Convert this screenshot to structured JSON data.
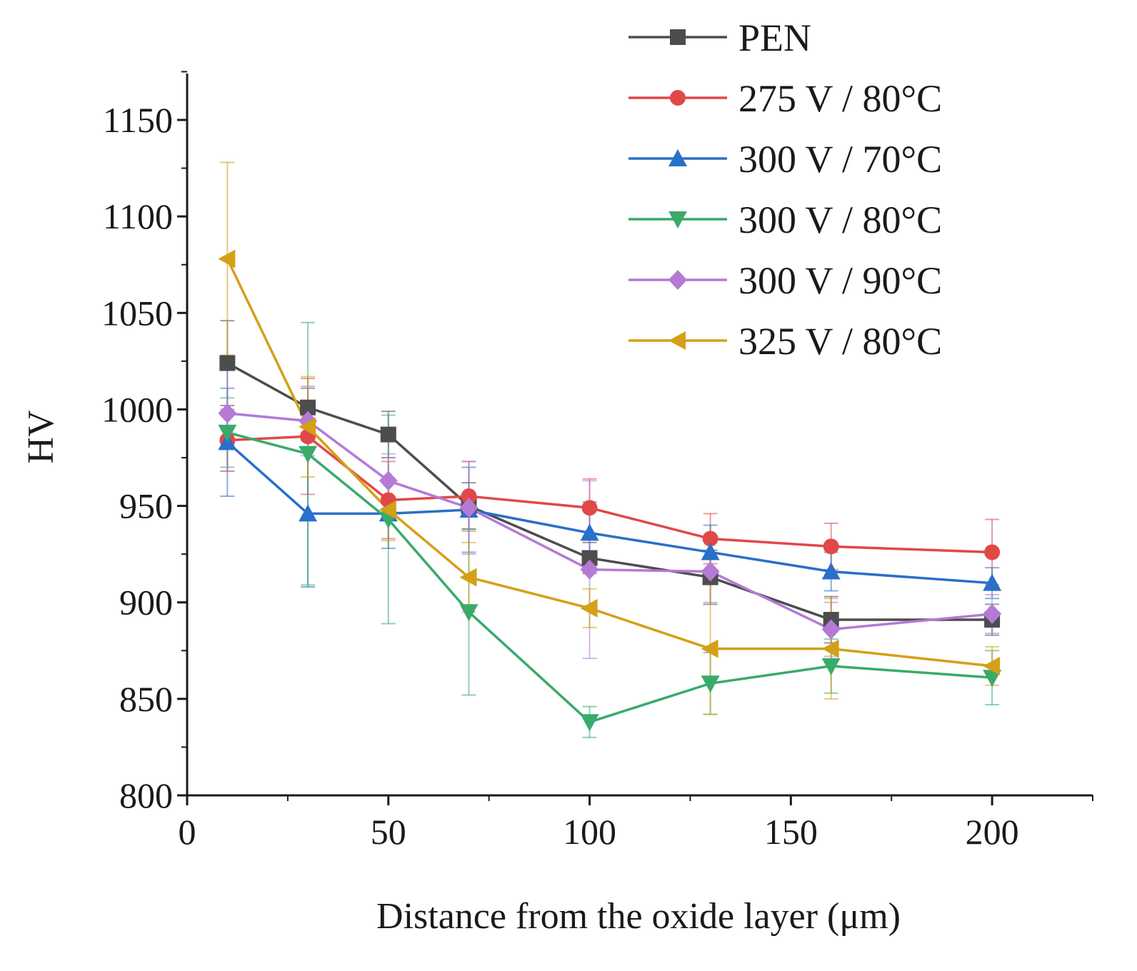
{
  "chart_data": {
    "type": "line",
    "title": "",
    "xlabel": "Distance from the oxide layer (μm)",
    "ylabel": "HV",
    "xlim": [
      0,
      225
    ],
    "ylim": [
      800,
      1175
    ],
    "x_ticks": [
      0,
      50,
      100,
      150,
      200
    ],
    "x_tick_labels": [
      "0",
      "50",
      "100",
      "150",
      "200"
    ],
    "y_ticks": [
      800,
      850,
      900,
      950,
      1000,
      1050,
      1100,
      1150
    ],
    "y_tick_labels": [
      "800",
      "850",
      "900",
      "950",
      "1000",
      "1050",
      "1100",
      "1150"
    ],
    "x": [
      10,
      30,
      50,
      70,
      100,
      130,
      160,
      200
    ],
    "legend_position": "top-right",
    "series": [
      {
        "name": "PEN",
        "color": "#4d4d4d",
        "marker": "square",
        "values": [
          1024,
          1001,
          987,
          950,
          923,
          913,
          891,
          891
        ],
        "errors": [
          22,
          10,
          12,
          12,
          8,
          14,
          12,
          8
        ]
      },
      {
        "name": "275 V / 80°C",
        "color": "#e04848",
        "marker": "circle",
        "values": [
          984,
          986,
          953,
          955,
          949,
          933,
          929,
          926
        ],
        "errors": [
          16,
          30,
          20,
          18,
          15,
          13,
          12,
          17
        ]
      },
      {
        "name": "300 V / 70°C",
        "color": "#2a6fc9",
        "marker": "triangle-up",
        "values": [
          983,
          946,
          946,
          948,
          936,
          926,
          916,
          910
        ],
        "errors": [
          28,
          38,
          18,
          22,
          16,
          14,
          10,
          8
        ]
      },
      {
        "name": "300 V / 80°C",
        "color": "#3aaa6b",
        "marker": "triangle-down",
        "values": [
          988,
          977,
          943,
          895,
          838,
          858,
          867,
          861
        ],
        "errors": [
          18,
          68,
          54,
          43,
          8,
          16,
          14,
          14
        ]
      },
      {
        "name": "300 V / 90°C",
        "color": "#b47ad6",
        "marker": "diamond",
        "values": [
          998,
          994,
          963,
          949,
          917,
          916,
          886,
          894
        ],
        "errors": [
          30,
          18,
          14,
          24,
          46,
          16,
          14,
          10
        ]
      },
      {
        "name": "325 V / 80°C",
        "color": "#d4a017",
        "marker": "triangle-left",
        "values": [
          1078,
          991,
          948,
          913,
          897,
          876,
          876,
          867
        ],
        "errors": [
          50,
          26,
          16,
          18,
          10,
          34,
          26,
          10
        ]
      }
    ]
  }
}
